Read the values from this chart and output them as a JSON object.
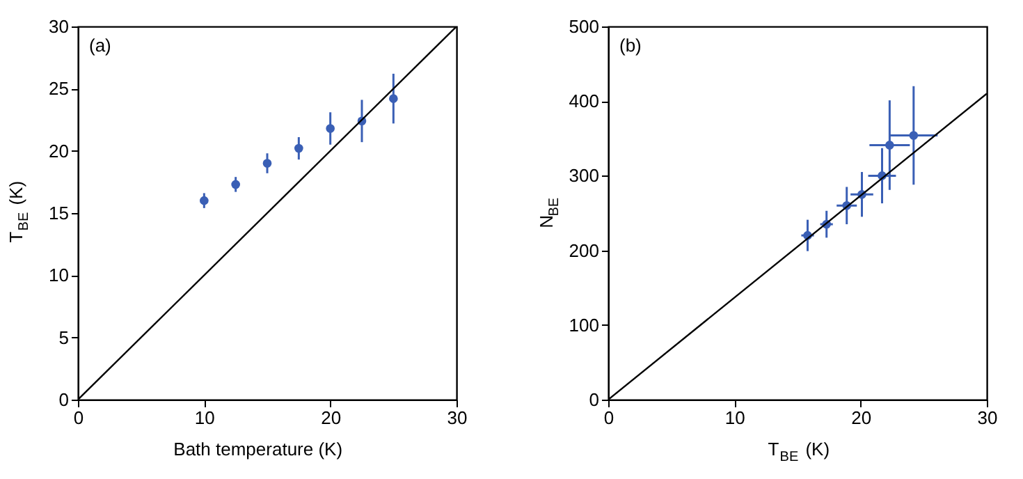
{
  "chart_data": [
    {
      "type": "scatter",
      "xlabel": "Bath temperature (K)",
      "ylabel": "T$_{BE}$ (K)",
      "annotations": [
        "(a)"
      ],
      "xlim": [
        0,
        30
      ],
      "ylim": [
        0,
        30
      ],
      "xticks": [
        0,
        10,
        20,
        30
      ],
      "yticks": [
        0,
        5,
        10,
        15,
        20,
        25,
        30
      ],
      "grid": false,
      "marker": "circle",
      "series": [
        {
          "type": "scatter",
          "color": "#3a5fb5",
          "x": [
            10,
            12.5,
            15,
            17.5,
            20,
            22.5,
            25
          ],
          "values": [
            16.0,
            17.3,
            19.0,
            20.2,
            21.8,
            22.4,
            24.2
          ],
          "errors": [
            0.6,
            0.6,
            0.8,
            0.9,
            1.3,
            1.7,
            2.0
          ]
        },
        {
          "type": "line",
          "color": "#000000",
          "marker": "none",
          "line_style": "solid",
          "x": [
            0,
            30
          ],
          "values": [
            0,
            30
          ]
        }
      ]
    },
    {
      "type": "scatter",
      "xlabel": "T$_{BE}$ (K)",
      "ylabel": "N$_{BE}$",
      "annotations": [
        "(b)"
      ],
      "xlim": [
        0,
        30
      ],
      "ylim": [
        0,
        500
      ],
      "xticks": [
        0,
        10,
        20,
        30
      ],
      "yticks": [
        0,
        100,
        200,
        300,
        400,
        500
      ],
      "grid": false,
      "marker": "circle",
      "series": [
        {
          "type": "scatter",
          "color": "#3a5fb5",
          "x": [
            15.8,
            17.3,
            18.9,
            20.1,
            21.7,
            22.3,
            24.2
          ],
          "values": [
            220,
            235,
            260,
            275,
            300,
            341,
            354
          ],
          "errors": [
            21,
            18,
            25,
            30,
            37,
            60,
            66
          ],
          "xerrors": [
            0.5,
            0.5,
            0.8,
            0.9,
            1.1,
            1.6,
            1.9
          ]
        },
        {
          "type": "line",
          "color": "#000000",
          "marker": "none",
          "line_style": "solid",
          "x": [
            0,
            30
          ],
          "values": [
            0,
            410
          ]
        }
      ]
    }
  ]
}
